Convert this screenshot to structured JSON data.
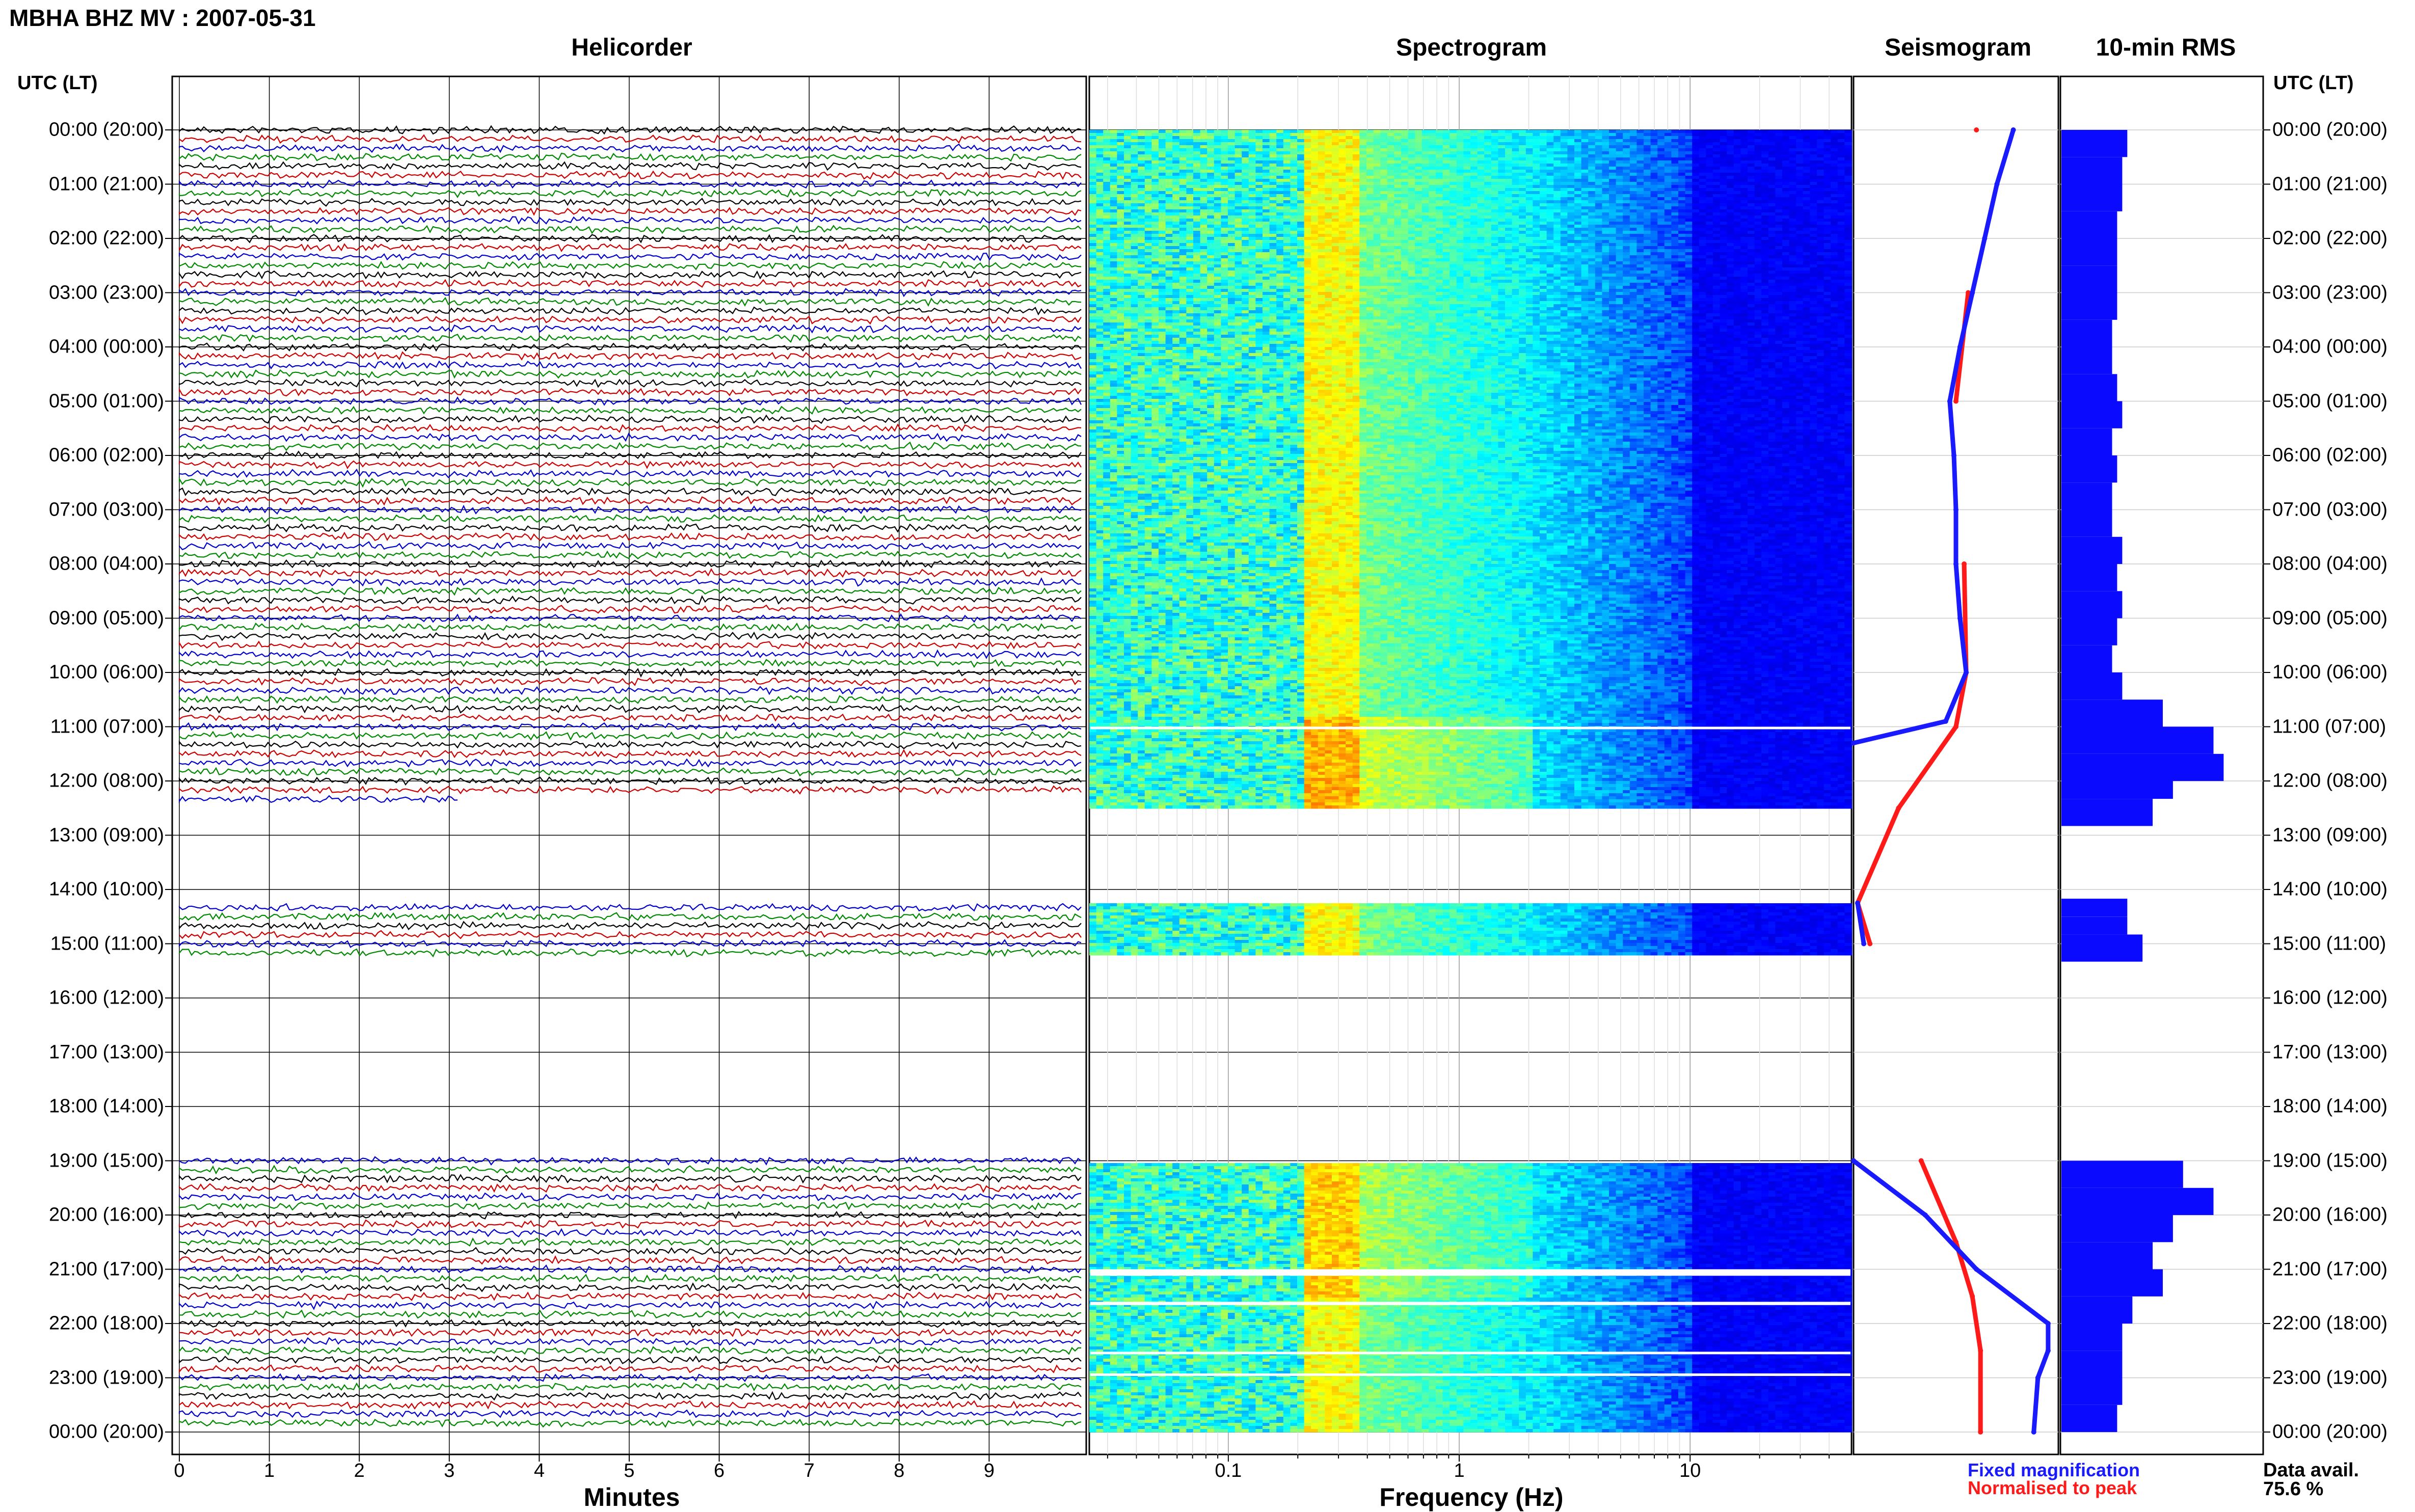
{
  "title": "MBHA BHZ MV : 2007-05-31",
  "panels": {
    "helicorder": "Helicorder",
    "spectrogram": "Spectrogram",
    "seismogram": "Seismogram",
    "rms": "10-min RMS"
  },
  "time_axis_header": "UTC (LT)",
  "time_labels": [
    "00:00 (20:00)",
    "01:00 (21:00)",
    "02:00 (22:00)",
    "03:00 (23:00)",
    "04:00 (00:00)",
    "05:00 (01:00)",
    "06:00 (02:00)",
    "07:00 (03:00)",
    "08:00 (04:00)",
    "09:00 (05:00)",
    "10:00 (06:00)",
    "11:00 (07:00)",
    "12:00 (08:00)",
    "13:00 (09:00)",
    "14:00 (10:00)",
    "15:00 (11:00)",
    "16:00 (12:00)",
    "17:00 (13:00)",
    "18:00 (14:00)",
    "19:00 (15:00)",
    "20:00 (16:00)",
    "21:00 (17:00)",
    "22:00 (18:00)",
    "23:00 (19:00)",
    "00:00 (20:00)"
  ],
  "minutes_ticks": [
    "0",
    "1",
    "2",
    "3",
    "4",
    "5",
    "6",
    "7",
    "8",
    "9"
  ],
  "minutes_label": "Minutes",
  "freq_ticks": [
    "0.1",
    "1",
    "10"
  ],
  "freq_label": "Frequency (Hz)",
  "legend": {
    "fixed": "Fixed magnification",
    "fixed_color": "#1a1aff",
    "normalised": "Normalised to peak",
    "normalised_color": "#ff1a1a"
  },
  "data_avail_label": "Data avail.",
  "data_avail_value": "75.6 %",
  "chart_data": {
    "type": "heatmap",
    "title": "MBHA BHZ MV : 2007-05-31",
    "x_helicorder": {
      "label": "Minutes",
      "range": [
        0,
        10
      ]
    },
    "x_spectrogram": {
      "label": "Frequency (Hz)",
      "scale": "log",
      "range": [
        0.025,
        50
      ]
    },
    "y": {
      "label": "UTC (LT)",
      "range_hours": [
        0,
        24
      ]
    },
    "data_segments_utc_hours": [
      [
        0,
        12.5
      ],
      [
        14.25,
        15.17
      ],
      [
        19,
        24
      ]
    ],
    "rms_10min": [
      {
        "t": 0.0,
        "v": 0.13
      },
      {
        "t": 0.5,
        "v": 0.12
      },
      {
        "t": 1.0,
        "v": 0.12
      },
      {
        "t": 1.5,
        "v": 0.11
      },
      {
        "t": 2.0,
        "v": 0.11
      },
      {
        "t": 2.5,
        "v": 0.11
      },
      {
        "t": 3.0,
        "v": 0.11
      },
      {
        "t": 3.5,
        "v": 0.1
      },
      {
        "t": 4.0,
        "v": 0.1
      },
      {
        "t": 4.5,
        "v": 0.11
      },
      {
        "t": 5.0,
        "v": 0.12
      },
      {
        "t": 5.5,
        "v": 0.1
      },
      {
        "t": 6.0,
        "v": 0.11
      },
      {
        "t": 6.5,
        "v": 0.1
      },
      {
        "t": 7.0,
        "v": 0.1
      },
      {
        "t": 7.5,
        "v": 0.12
      },
      {
        "t": 8.0,
        "v": 0.11
      },
      {
        "t": 8.5,
        "v": 0.12
      },
      {
        "t": 9.0,
        "v": 0.11
      },
      {
        "t": 9.5,
        "v": 0.1
      },
      {
        "t": 10.0,
        "v": 0.12
      },
      {
        "t": 10.5,
        "v": 0.2
      },
      {
        "t": 11.0,
        "v": 0.3
      },
      {
        "t": 11.5,
        "v": 0.32
      },
      {
        "t": 12.0,
        "v": 0.22
      },
      {
        "t": 12.33,
        "v": 0.18
      },
      {
        "t": 14.17,
        "v": 0.13
      },
      {
        "t": 14.5,
        "v": 0.13
      },
      {
        "t": 14.83,
        "v": 0.16
      },
      {
        "t": 19.0,
        "v": 0.24
      },
      {
        "t": 19.5,
        "v": 0.3
      },
      {
        "t": 20.0,
        "v": 0.22
      },
      {
        "t": 20.5,
        "v": 0.18
      },
      {
        "t": 21.0,
        "v": 0.2
      },
      {
        "t": 21.5,
        "v": 0.14
      },
      {
        "t": 22.0,
        "v": 0.12
      },
      {
        "t": 22.5,
        "v": 0.12
      },
      {
        "t": 23.0,
        "v": 0.12
      },
      {
        "t": 23.5,
        "v": 0.11
      }
    ],
    "seismogram_fixed": [
      {
        "t": 0.0,
        "v": 0.78
      },
      {
        "t": 1.0,
        "v": 0.7
      },
      {
        "t": 2.0,
        "v": 0.64
      },
      {
        "t": 3.0,
        "v": 0.58
      },
      {
        "t": 4.0,
        "v": 0.52
      },
      {
        "t": 5.0,
        "v": 0.47
      },
      {
        "t": 6.0,
        "v": 0.49
      },
      {
        "t": 7.0,
        "v": 0.5
      },
      {
        "t": 8.0,
        "v": 0.5
      },
      {
        "t": 9.0,
        "v": 0.52
      },
      {
        "t": 10.0,
        "v": 0.55
      },
      {
        "t": 10.9,
        "v": 0.45
      },
      {
        "t": 11.3,
        "v": 0.0
      },
      {
        "t": 14.25,
        "v": 0.02
      },
      {
        "t": 15.0,
        "v": 0.05
      },
      {
        "t": 19.0,
        "v": 0.0
      },
      {
        "t": 20.0,
        "v": 0.35
      },
      {
        "t": 21.0,
        "v": 0.6
      },
      {
        "t": 22.0,
        "v": 0.95
      },
      {
        "t": 22.5,
        "v": 0.95
      },
      {
        "t": 23.0,
        "v": 0.9
      },
      {
        "t": 24.0,
        "v": 0.88
      }
    ],
    "seismogram_normalised": [
      {
        "t": 0.0,
        "v": 0.6
      },
      {
        "t": 3.0,
        "v": 0.56
      },
      {
        "t": 5.0,
        "v": 0.5
      },
      {
        "t": 8.0,
        "v": 0.54
      },
      {
        "t": 10.0,
        "v": 0.55
      },
      {
        "t": 11.0,
        "v": 0.5
      },
      {
        "t": 12.5,
        "v": 0.22
      },
      {
        "t": 14.25,
        "v": 0.02
      },
      {
        "t": 15.0,
        "v": 0.08
      },
      {
        "t": 19.0,
        "v": 0.33
      },
      {
        "t": 20.5,
        "v": 0.5
      },
      {
        "t": 21.5,
        "v": 0.58
      },
      {
        "t": 22.5,
        "v": 0.62
      },
      {
        "t": 24.0,
        "v": 0.62
      }
    ]
  }
}
